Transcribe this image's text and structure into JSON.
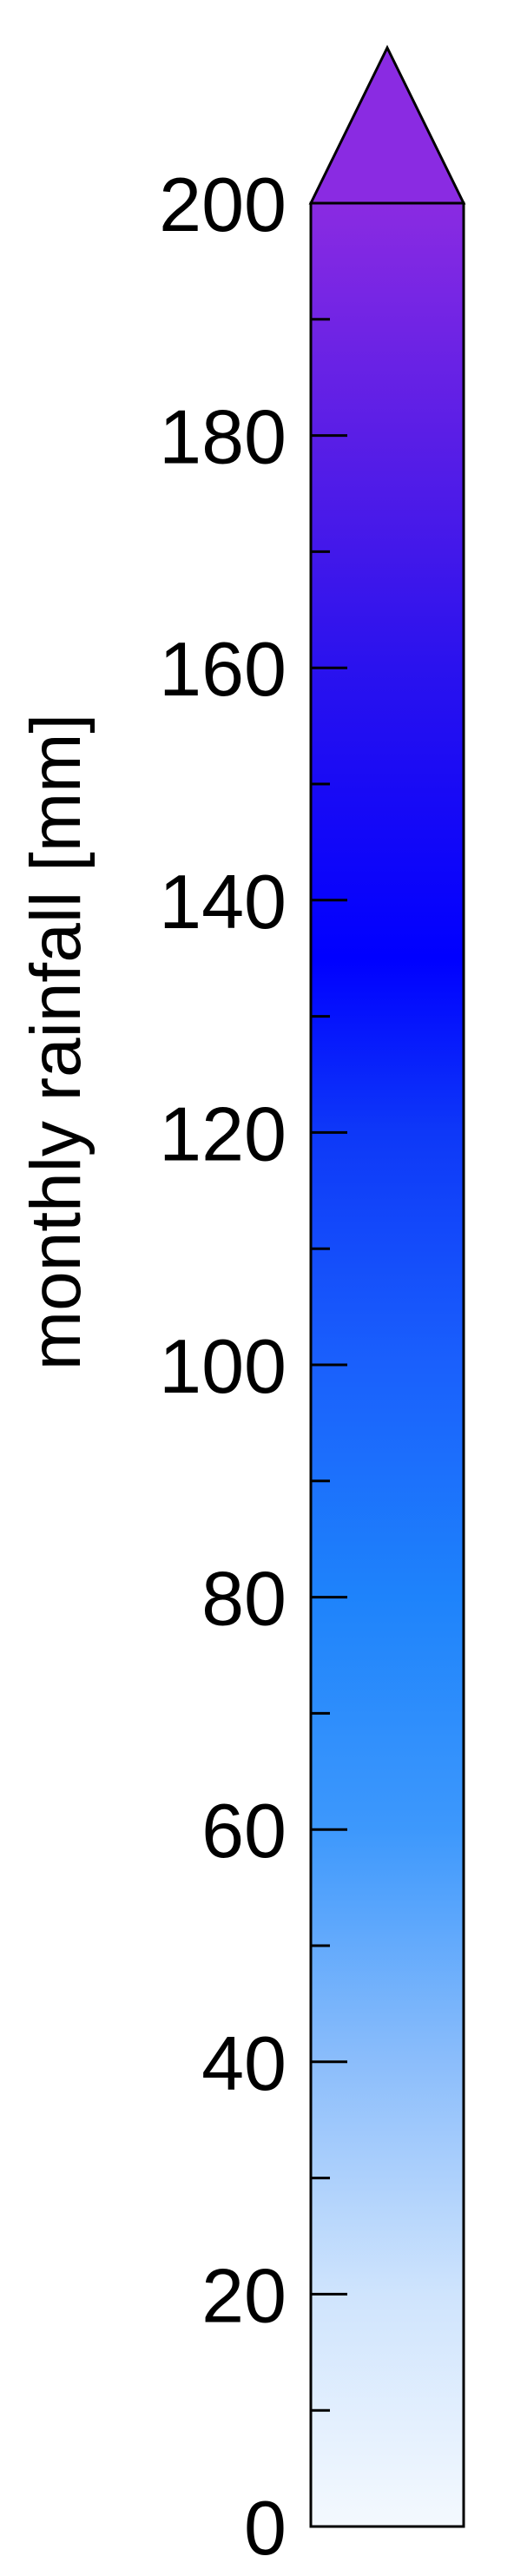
{
  "chart_data": {
    "type": "colorbar",
    "orientation": "vertical",
    "ylabel": "monthly rainfall [mm]",
    "ylim": [
      0,
      200
    ],
    "extend": "max",
    "major_ticks": [
      0,
      20,
      40,
      60,
      80,
      100,
      120,
      140,
      160,
      180,
      200
    ],
    "tick_labels": [
      "0",
      "20",
      "40",
      "60",
      "80",
      "100",
      "120",
      "140",
      "160",
      "180",
      "200"
    ],
    "minor_ticks": [
      10,
      30,
      50,
      70,
      90,
      110,
      130,
      150,
      170,
      190
    ],
    "color_stops": [
      {
        "value": 0,
        "color": "#f4f9fe"
      },
      {
        "value": 20,
        "color": "#cfe4fd"
      },
      {
        "value": 40,
        "color": "#8bbdfb"
      },
      {
        "value": 60,
        "color": "#3d98fc"
      },
      {
        "value": 80,
        "color": "#1e83fb"
      },
      {
        "value": 100,
        "color": "#1a60fc"
      },
      {
        "value": 120,
        "color": "#0e38f8"
      },
      {
        "value": 135,
        "color": "#0000ff"
      },
      {
        "value": 160,
        "color": "#2a12ee"
      },
      {
        "value": 180,
        "color": "#5a1ee6"
      },
      {
        "value": 200,
        "color": "#8a2be2"
      }
    ],
    "over_color": "#8a2be2",
    "outline_color": "#000000"
  }
}
